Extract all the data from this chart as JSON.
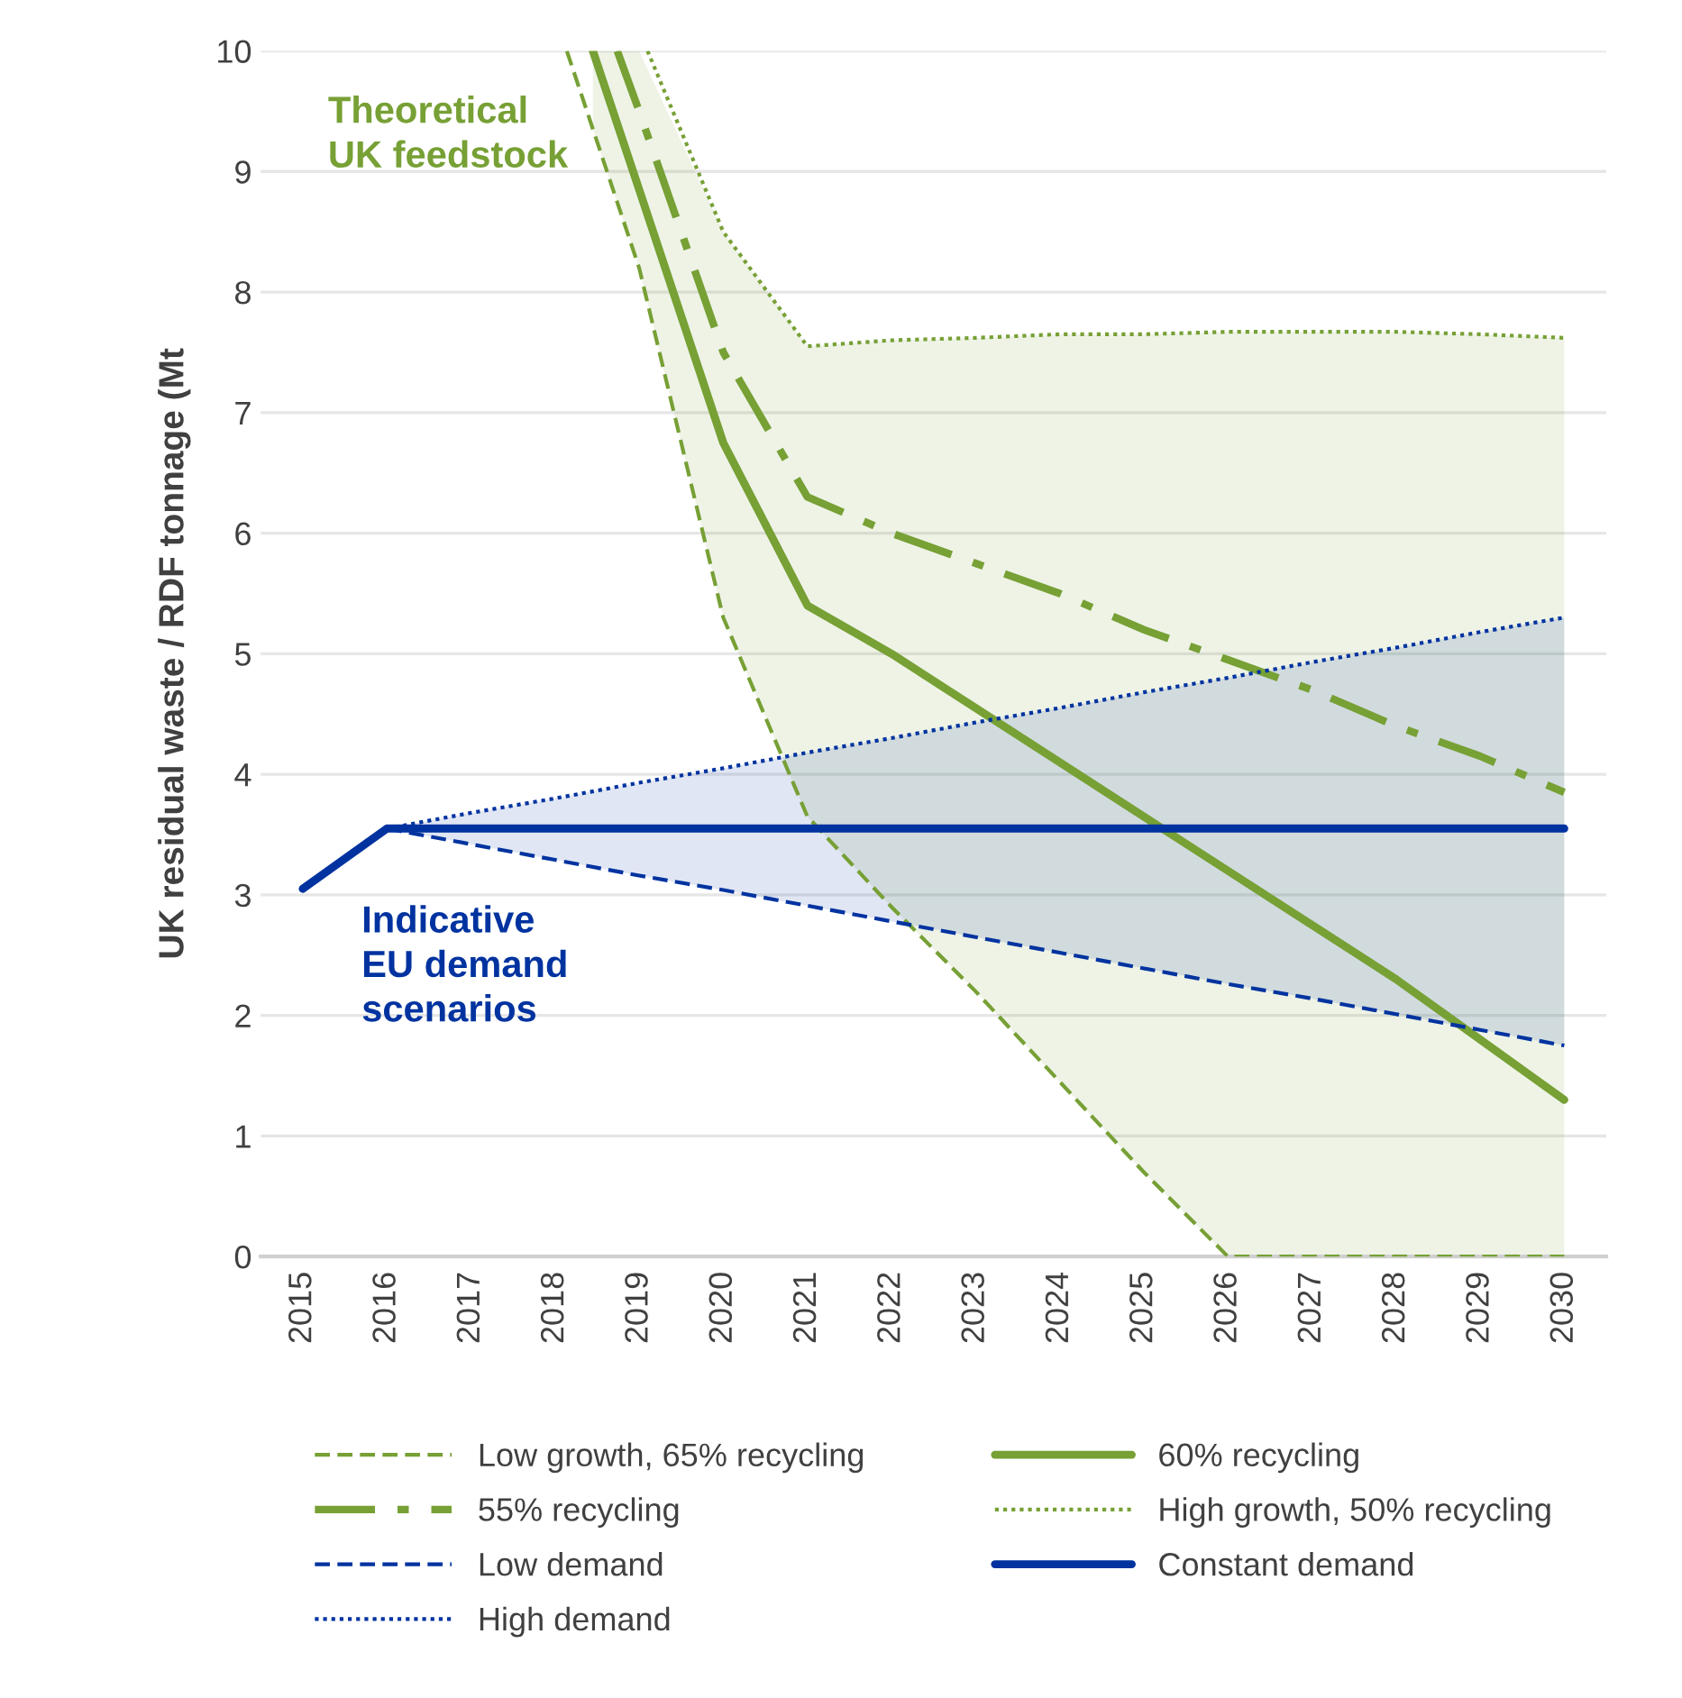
{
  "chart_data": {
    "type": "line",
    "ylabel": "UK residual waste / RDF tonnage (Mt",
    "xlim": [
      2014.5,
      2030.5
    ],
    "xticks": [
      2015,
      2016,
      2017,
      2018,
      2019,
      2020,
      2021,
      2022,
      2023,
      2024,
      2025,
      2026,
      2027,
      2028,
      2029,
      2030
    ],
    "ylim": [
      0,
      10
    ],
    "yticks": [
      0,
      1,
      2,
      3,
      4,
      5,
      6,
      7,
      8,
      9,
      10
    ],
    "grid": "y",
    "legend": "bottom",
    "marker": "none",
    "annotations": [
      "Theoretical\nUK feedstock",
      "Indicative\nEU demand\nscenarios"
    ],
    "series": [
      {
        "name": "Low growth, 65% recycling",
        "color": "#77a035",
        "line_style": "dashed",
        "x": [
          2018.14,
          2019,
          2020,
          2021,
          2022,
          2023,
          2024,
          2025,
          2026,
          2027,
          2028,
          2029,
          2030
        ],
        "values": [
          10,
          8.2,
          5.3,
          3.65,
          2.9,
          2.2,
          1.45,
          0.7,
          0,
          0,
          0,
          0,
          0
        ]
      },
      {
        "name": "60% recycling",
        "color": "#77a035",
        "line_style": "solid",
        "x": [
          2018.45,
          2019,
          2020,
          2021,
          2022,
          2023,
          2024,
          2025,
          2026,
          2027,
          2028,
          2029,
          2030
        ],
        "values": [
          10,
          8.85,
          6.75,
          5.4,
          5.0,
          4.55,
          4.1,
          3.65,
          3.2,
          2.75,
          2.3,
          1.8,
          1.3
        ],
        "lower": [
          9.35,
          8.2,
          5.3,
          3.65,
          2.9,
          2.2,
          1.45,
          0.7,
          0,
          0,
          0,
          0,
          0
        ],
        "upper": [
          10,
          10,
          8.5,
          7.55,
          7.6,
          7.62,
          7.65,
          7.65,
          7.67,
          7.67,
          7.67,
          7.65,
          7.62
        ]
      },
      {
        "name": "55% recycling",
        "color": "#77a035",
        "line_style": "dashdot",
        "x": [
          2018.74,
          2019,
          2020,
          2021,
          2022,
          2023,
          2024,
          2025,
          2026,
          2027,
          2028,
          2029,
          2030
        ],
        "values": [
          10,
          9.5,
          7.5,
          6.3,
          6.0,
          5.75,
          5.5,
          5.2,
          4.95,
          4.7,
          4.4,
          4.15,
          3.85
        ]
      },
      {
        "name": "High growth, 50% recycling",
        "color": "#77a035",
        "line_style": "dotted",
        "x": [
          2019.1,
          2020,
          2021,
          2022,
          2023,
          2024,
          2025,
          2026,
          2027,
          2028,
          2029,
          2030
        ],
        "values": [
          10,
          8.5,
          7.55,
          7.6,
          7.62,
          7.65,
          7.65,
          7.67,
          7.67,
          7.67,
          7.65,
          7.62
        ]
      },
      {
        "name": "Low demand",
        "color": "#0033a0",
        "line_style": "dashed",
        "x": [
          2016,
          2017,
          2018,
          2019,
          2020,
          2021,
          2022,
          2023,
          2024,
          2025,
          2026,
          2027,
          2028,
          2029,
          2030
        ],
        "values": [
          3.55,
          3.42,
          3.29,
          3.16,
          3.04,
          2.91,
          2.78,
          2.65,
          2.52,
          2.39,
          2.26,
          2.14,
          2.01,
          1.88,
          1.75
        ]
      },
      {
        "name": "Constant demand",
        "color": "#0033a0",
        "line_style": "solid",
        "x": [
          2015,
          2016,
          2017,
          2018,
          2019,
          2020,
          2021,
          2022,
          2023,
          2024,
          2025,
          2026,
          2027,
          2028,
          2029,
          2030
        ],
        "values": [
          3.05,
          3.55,
          3.55,
          3.55,
          3.55,
          3.55,
          3.55,
          3.55,
          3.55,
          3.55,
          3.55,
          3.55,
          3.55,
          3.55,
          3.55,
          3.55
        ],
        "lower": [
          null,
          3.55,
          3.42,
          3.29,
          3.16,
          3.04,
          2.91,
          2.78,
          2.65,
          2.52,
          2.39,
          2.26,
          2.14,
          2.01,
          1.88,
          1.75
        ],
        "upper": [
          null,
          3.55,
          3.68,
          3.8,
          3.93,
          4.05,
          4.18,
          4.3,
          4.43,
          4.55,
          4.68,
          4.8,
          4.93,
          5.05,
          5.18,
          5.3
        ]
      },
      {
        "name": "High demand",
        "color": "#0033a0",
        "line_style": "dotted",
        "x": [
          2016,
          2017,
          2018,
          2019,
          2020,
          2021,
          2022,
          2023,
          2024,
          2025,
          2026,
          2027,
          2028,
          2029,
          2030
        ],
        "values": [
          3.55,
          3.68,
          3.8,
          3.93,
          4.05,
          4.18,
          4.3,
          4.43,
          4.55,
          4.68,
          4.8,
          4.93,
          5.05,
          5.18,
          5.3
        ]
      }
    ]
  }
}
